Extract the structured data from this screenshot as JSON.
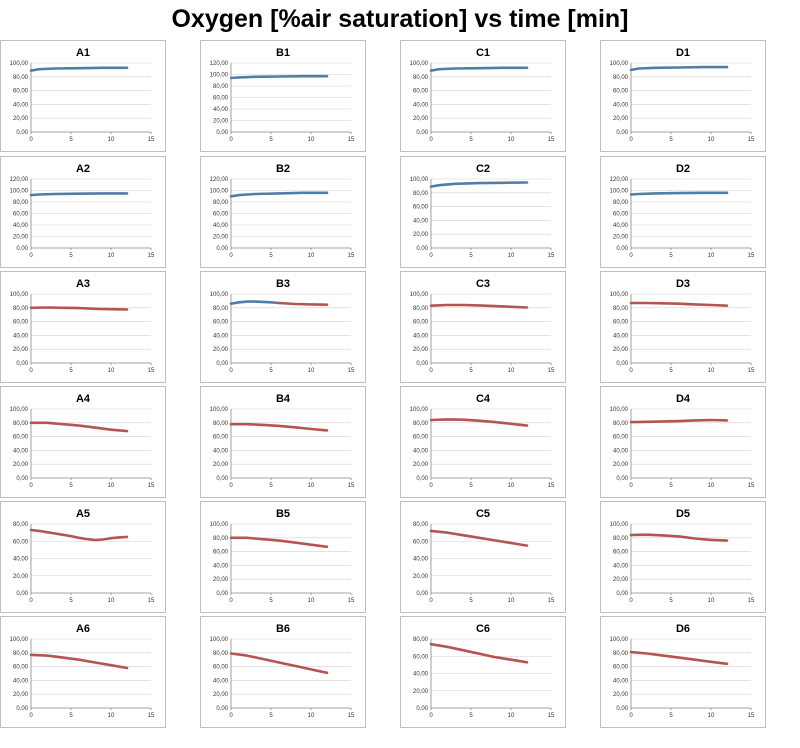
{
  "title": "Oxygen [%air saturation] vs time [min]",
  "colors": {
    "blue": "#4f7ea8",
    "red": "#b55552"
  },
  "chart_data": [
    {
      "type": "line",
      "title": "A1",
      "color": "blue",
      "ylim": [
        0,
        100
      ],
      "yticks": [
        "0,00",
        "20,00",
        "40,00",
        "60,00",
        "80,00",
        "100,00"
      ],
      "xlim": [
        0,
        15
      ],
      "xticks": [
        "0",
        "5",
        "10",
        "15"
      ],
      "series": [
        {
          "x": [
            0,
            1,
            3,
            6,
            9,
            12
          ],
          "y": [
            89,
            91,
            92,
            92.5,
            93,
            93
          ]
        }
      ]
    },
    {
      "type": "line",
      "title": "B1",
      "color": "blue",
      "ylim": [
        0,
        120
      ],
      "yticks": [
        "0,00",
        "20,00",
        "40,00",
        "60,00",
        "80,00",
        "100,00",
        "120,00"
      ],
      "xlim": [
        0,
        15
      ],
      "xticks": [
        "0",
        "5",
        "10",
        "15"
      ],
      "series": [
        {
          "x": [
            0,
            1,
            3,
            6,
            9,
            12
          ],
          "y": [
            94,
            95,
            96,
            96.5,
            97,
            97
          ]
        }
      ]
    },
    {
      "type": "line",
      "title": "C1",
      "color": "blue",
      "ylim": [
        0,
        100
      ],
      "yticks": [
        "0,00",
        "20,00",
        "40,00",
        "60,00",
        "80,00",
        "100,00"
      ],
      "xlim": [
        0,
        15
      ],
      "xticks": [
        "0",
        "5",
        "10",
        "15"
      ],
      "series": [
        {
          "x": [
            0,
            1,
            3,
            6,
            9,
            12
          ],
          "y": [
            89,
            91,
            92,
            92.5,
            93,
            93
          ]
        }
      ]
    },
    {
      "type": "line",
      "title": "D1",
      "color": "blue",
      "ylim": [
        0,
        100
      ],
      "yticks": [
        "0,00",
        "20,00",
        "40,00",
        "60,00",
        "80,00",
        "100,00"
      ],
      "xlim": [
        0,
        15
      ],
      "xticks": [
        "0",
        "5",
        "10",
        "15"
      ],
      "series": [
        {
          "x": [
            0,
            1,
            3,
            6,
            9,
            12
          ],
          "y": [
            90,
            92,
            93,
            93.5,
            94,
            94
          ]
        }
      ]
    },
    {
      "type": "line",
      "title": "A2",
      "color": "blue",
      "ylim": [
        0,
        120
      ],
      "yticks": [
        "0,00",
        "20,00",
        "40,00",
        "60,00",
        "80,00",
        "100,00",
        "120,00"
      ],
      "xlim": [
        0,
        15
      ],
      "xticks": [
        "0",
        "5",
        "10",
        "15"
      ],
      "series": [
        {
          "x": [
            0,
            1,
            3,
            6,
            9,
            12
          ],
          "y": [
            92,
            93,
            94,
            94.5,
            95,
            95
          ]
        }
      ]
    },
    {
      "type": "line",
      "title": "B2",
      "color": "blue",
      "ylim": [
        0,
        120
      ],
      "yticks": [
        "0,00",
        "20,00",
        "40,00",
        "60,00",
        "80,00",
        "100,00",
        "120,00"
      ],
      "xlim": [
        0,
        15
      ],
      "xticks": [
        "0",
        "5",
        "10",
        "15"
      ],
      "series": [
        {
          "x": [
            0,
            1,
            3,
            6,
            9,
            12
          ],
          "y": [
            90,
            92,
            94,
            95,
            96,
            96
          ]
        }
      ]
    },
    {
      "type": "line",
      "title": "C2",
      "color": "blue",
      "ylim": [
        0,
        100
      ],
      "yticks": [
        "0,00",
        "20,00",
        "40,00",
        "60,00",
        "80,00",
        "100,00"
      ],
      "xlim": [
        0,
        15
      ],
      "xticks": [
        "0",
        "5",
        "10",
        "15"
      ],
      "series": [
        {
          "x": [
            0,
            1,
            3,
            6,
            9,
            12
          ],
          "y": [
            89,
            91,
            93,
            94,
            94.5,
            95
          ]
        }
      ]
    },
    {
      "type": "line",
      "title": "D2",
      "color": "blue",
      "ylim": [
        0,
        120
      ],
      "yticks": [
        "0,00",
        "20,00",
        "40,00",
        "60,00",
        "80,00",
        "100,00",
        "120,00"
      ],
      "xlim": [
        0,
        15
      ],
      "xticks": [
        "0",
        "5",
        "10",
        "15"
      ],
      "series": [
        {
          "x": [
            0,
            1,
            3,
            6,
            9,
            12
          ],
          "y": [
            93,
            94,
            95,
            95.5,
            96,
            96
          ]
        }
      ]
    },
    {
      "type": "line",
      "title": "A3",
      "color": "red",
      "ylim": [
        0,
        100
      ],
      "yticks": [
        "0,00",
        "20,00",
        "40,00",
        "60,00",
        "80,00",
        "100,00"
      ],
      "xlim": [
        0,
        15
      ],
      "xticks": [
        "0",
        "5",
        "10",
        "15"
      ],
      "series": [
        {
          "x": [
            0,
            2,
            4,
            6,
            8,
            10,
            12
          ],
          "y": [
            80,
            80.5,
            80,
            79.5,
            78.5,
            78,
            77.5
          ]
        }
      ]
    },
    {
      "type": "line",
      "title": "B3",
      "color": "blue",
      "ylim": [
        0,
        100
      ],
      "yticks": [
        "0,00",
        "20,00",
        "40,00",
        "60,00",
        "80,00",
        "100,00"
      ],
      "xlim": [
        0,
        15
      ],
      "xticks": [
        "0",
        "5",
        "10",
        "15"
      ],
      "series": [
        {
          "x": [
            0,
            1,
            2,
            3,
            4,
            5,
            6
          ],
          "y": [
            86,
            88,
            89,
            89,
            88.5,
            88,
            87
          ]
        },
        {
          "x": [
            6,
            8,
            10,
            12
          ],
          "y": [
            87,
            85.5,
            85,
            84.5
          ],
          "color": "red"
        }
      ]
    },
    {
      "type": "line",
      "title": "C3",
      "color": "red",
      "ylim": [
        0,
        100
      ],
      "yticks": [
        "0,00",
        "20,00",
        "40,00",
        "60,00",
        "80,00",
        "100,00"
      ],
      "xlim": [
        0,
        15
      ],
      "xticks": [
        "0",
        "5",
        "10",
        "15"
      ],
      "series": [
        {
          "x": [
            0,
            2,
            4,
            6,
            8,
            10,
            12
          ],
          "y": [
            83,
            84,
            84,
            83.5,
            82.5,
            81.5,
            80.5
          ]
        }
      ]
    },
    {
      "type": "line",
      "title": "D3",
      "color": "red",
      "ylim": [
        0,
        100
      ],
      "yticks": [
        "0,00",
        "20,00",
        "40,00",
        "60,00",
        "80,00",
        "100,00"
      ],
      "xlim": [
        0,
        15
      ],
      "xticks": [
        "0",
        "5",
        "10",
        "15"
      ],
      "series": [
        {
          "x": [
            0,
            2,
            4,
            6,
            8,
            10,
            12
          ],
          "y": [
            87,
            87,
            86.5,
            86,
            85,
            84,
            83
          ]
        }
      ]
    },
    {
      "type": "line",
      "title": "A4",
      "color": "red",
      "ylim": [
        0,
        100
      ],
      "yticks": [
        "0,00",
        "20,00",
        "40,00",
        "60,00",
        "80,00",
        "100,00"
      ],
      "xlim": [
        0,
        15
      ],
      "xticks": [
        "0",
        "5",
        "10",
        "15"
      ],
      "series": [
        {
          "x": [
            0,
            2,
            4,
            6,
            8,
            10,
            12
          ],
          "y": [
            80,
            80,
            78,
            76,
            73,
            70,
            68
          ]
        }
      ]
    },
    {
      "type": "line",
      "title": "B4",
      "color": "red",
      "ylim": [
        0,
        100
      ],
      "yticks": [
        "0,00",
        "20,00",
        "40,00",
        "60,00",
        "80,00",
        "100,00"
      ],
      "xlim": [
        0,
        15
      ],
      "xticks": [
        "0",
        "5",
        "10",
        "15"
      ],
      "series": [
        {
          "x": [
            0,
            2,
            4,
            6,
            8,
            10,
            12
          ],
          "y": [
            78,
            78,
            77,
            75.5,
            73.5,
            71,
            69
          ]
        }
      ]
    },
    {
      "type": "line",
      "title": "C4",
      "color": "red",
      "ylim": [
        0,
        100
      ],
      "yticks": [
        "0,00",
        "20,00",
        "40,00",
        "60,00",
        "80,00",
        "100,00"
      ],
      "xlim": [
        0,
        15
      ],
      "xticks": [
        "0",
        "5",
        "10",
        "15"
      ],
      "series": [
        {
          "x": [
            0,
            2,
            4,
            6,
            8,
            10,
            12
          ],
          "y": [
            84,
            85,
            84.5,
            83,
            81,
            78.5,
            76
          ]
        }
      ]
    },
    {
      "type": "line",
      "title": "D4",
      "color": "red",
      "ylim": [
        0,
        100
      ],
      "yticks": [
        "0,00",
        "20,00",
        "40,00",
        "60,00",
        "80,00",
        "100,00"
      ],
      "xlim": [
        0,
        15
      ],
      "xticks": [
        "0",
        "5",
        "10",
        "15"
      ],
      "series": [
        {
          "x": [
            0,
            2,
            4,
            6,
            8,
            10,
            12
          ],
          "y": [
            81,
            81.5,
            82,
            82.5,
            83.5,
            84,
            83.5
          ]
        }
      ]
    },
    {
      "type": "line",
      "title": "A5",
      "color": "red",
      "ylim": [
        0,
        80
      ],
      "yticks": [
        "0,00",
        "20,00",
        "40,00",
        "60,00",
        "80,00"
      ],
      "xlim": [
        0,
        15
      ],
      "xticks": [
        "0",
        "5",
        "10",
        "15"
      ],
      "series": [
        {
          "x": [
            0,
            1,
            2,
            3,
            4,
            5,
            6,
            7,
            8,
            9,
            10,
            11,
            12
          ],
          "y": [
            73,
            72,
            70.5,
            69,
            67.5,
            66,
            64,
            62.5,
            61.5,
            62,
            63.5,
            64.5,
            65
          ]
        }
      ]
    },
    {
      "type": "line",
      "title": "B5",
      "color": "red",
      "ylim": [
        0,
        100
      ],
      "yticks": [
        "0,00",
        "20,00",
        "40,00",
        "60,00",
        "80,00",
        "100,00"
      ],
      "xlim": [
        0,
        15
      ],
      "xticks": [
        "0",
        "5",
        "10",
        "15"
      ],
      "series": [
        {
          "x": [
            0,
            2,
            4,
            6,
            8,
            10,
            12
          ],
          "y": [
            80,
            80,
            78,
            76,
            73,
            70,
            67
          ]
        }
      ]
    },
    {
      "type": "line",
      "title": "C5",
      "color": "red",
      "ylim": [
        0,
        80
      ],
      "yticks": [
        "0,00",
        "20,00",
        "40,00",
        "60,00",
        "80,00"
      ],
      "xlim": [
        0,
        15
      ],
      "xticks": [
        "0",
        "5",
        "10",
        "15"
      ],
      "series": [
        {
          "x": [
            0,
            2,
            4,
            6,
            8,
            10,
            12
          ],
          "y": [
            72,
            70,
            67,
            64,
            61,
            58,
            55
          ]
        }
      ]
    },
    {
      "type": "line",
      "title": "D5",
      "color": "red",
      "ylim": [
        0,
        100
      ],
      "yticks": [
        "0,00",
        "20,00",
        "40,00",
        "60,00",
        "80,00",
        "100,00"
      ],
      "xlim": [
        0,
        15
      ],
      "xticks": [
        "0",
        "5",
        "10",
        "15"
      ],
      "series": [
        {
          "x": [
            0,
            2,
            4,
            6,
            8,
            10,
            12
          ],
          "y": [
            84,
            84.5,
            83.5,
            82,
            79,
            77,
            76
          ]
        }
      ]
    },
    {
      "type": "line",
      "title": "A6",
      "color": "red",
      "ylim": [
        0,
        100
      ],
      "yticks": [
        "0,00",
        "20,00",
        "40,00",
        "60,00",
        "80,00",
        "100,00"
      ],
      "xlim": [
        0,
        15
      ],
      "xticks": [
        "0",
        "5",
        "10",
        "15"
      ],
      "series": [
        {
          "x": [
            0,
            2,
            4,
            6,
            8,
            10,
            12
          ],
          "y": [
            77,
            76,
            73,
            70,
            66,
            62,
            58
          ]
        }
      ]
    },
    {
      "type": "line",
      "title": "B6",
      "color": "red",
      "ylim": [
        0,
        100
      ],
      "yticks": [
        "0,00",
        "20,00",
        "40,00",
        "60,00",
        "80,00",
        "100,00"
      ],
      "xlim": [
        0,
        15
      ],
      "xticks": [
        "0",
        "5",
        "10",
        "15"
      ],
      "series": [
        {
          "x": [
            0,
            2,
            4,
            6,
            8,
            10,
            12
          ],
          "y": [
            79,
            76,
            71,
            66,
            61,
            56,
            51
          ]
        }
      ]
    },
    {
      "type": "line",
      "title": "C6",
      "color": "red",
      "ylim": [
        0,
        80
      ],
      "yticks": [
        "0,00",
        "20,00",
        "40,00",
        "60,00",
        "80,00"
      ],
      "xlim": [
        0,
        15
      ],
      "xticks": [
        "0",
        "5",
        "10",
        "15"
      ],
      "series": [
        {
          "x": [
            0,
            2,
            4,
            6,
            8,
            10,
            12
          ],
          "y": [
            74,
            71,
            67,
            63,
            59,
            56,
            53
          ]
        }
      ]
    },
    {
      "type": "line",
      "title": "D6",
      "color": "red",
      "ylim": [
        0,
        100
      ],
      "yticks": [
        "0,00",
        "20,00",
        "40,00",
        "60,00",
        "80,00",
        "100,00"
      ],
      "xlim": [
        0,
        15
      ],
      "xticks": [
        "0",
        "5",
        "10",
        "15"
      ],
      "series": [
        {
          "x": [
            0,
            2,
            4,
            6,
            8,
            10,
            12
          ],
          "y": [
            81,
            79,
            76,
            73,
            70,
            67,
            64
          ]
        }
      ]
    }
  ]
}
